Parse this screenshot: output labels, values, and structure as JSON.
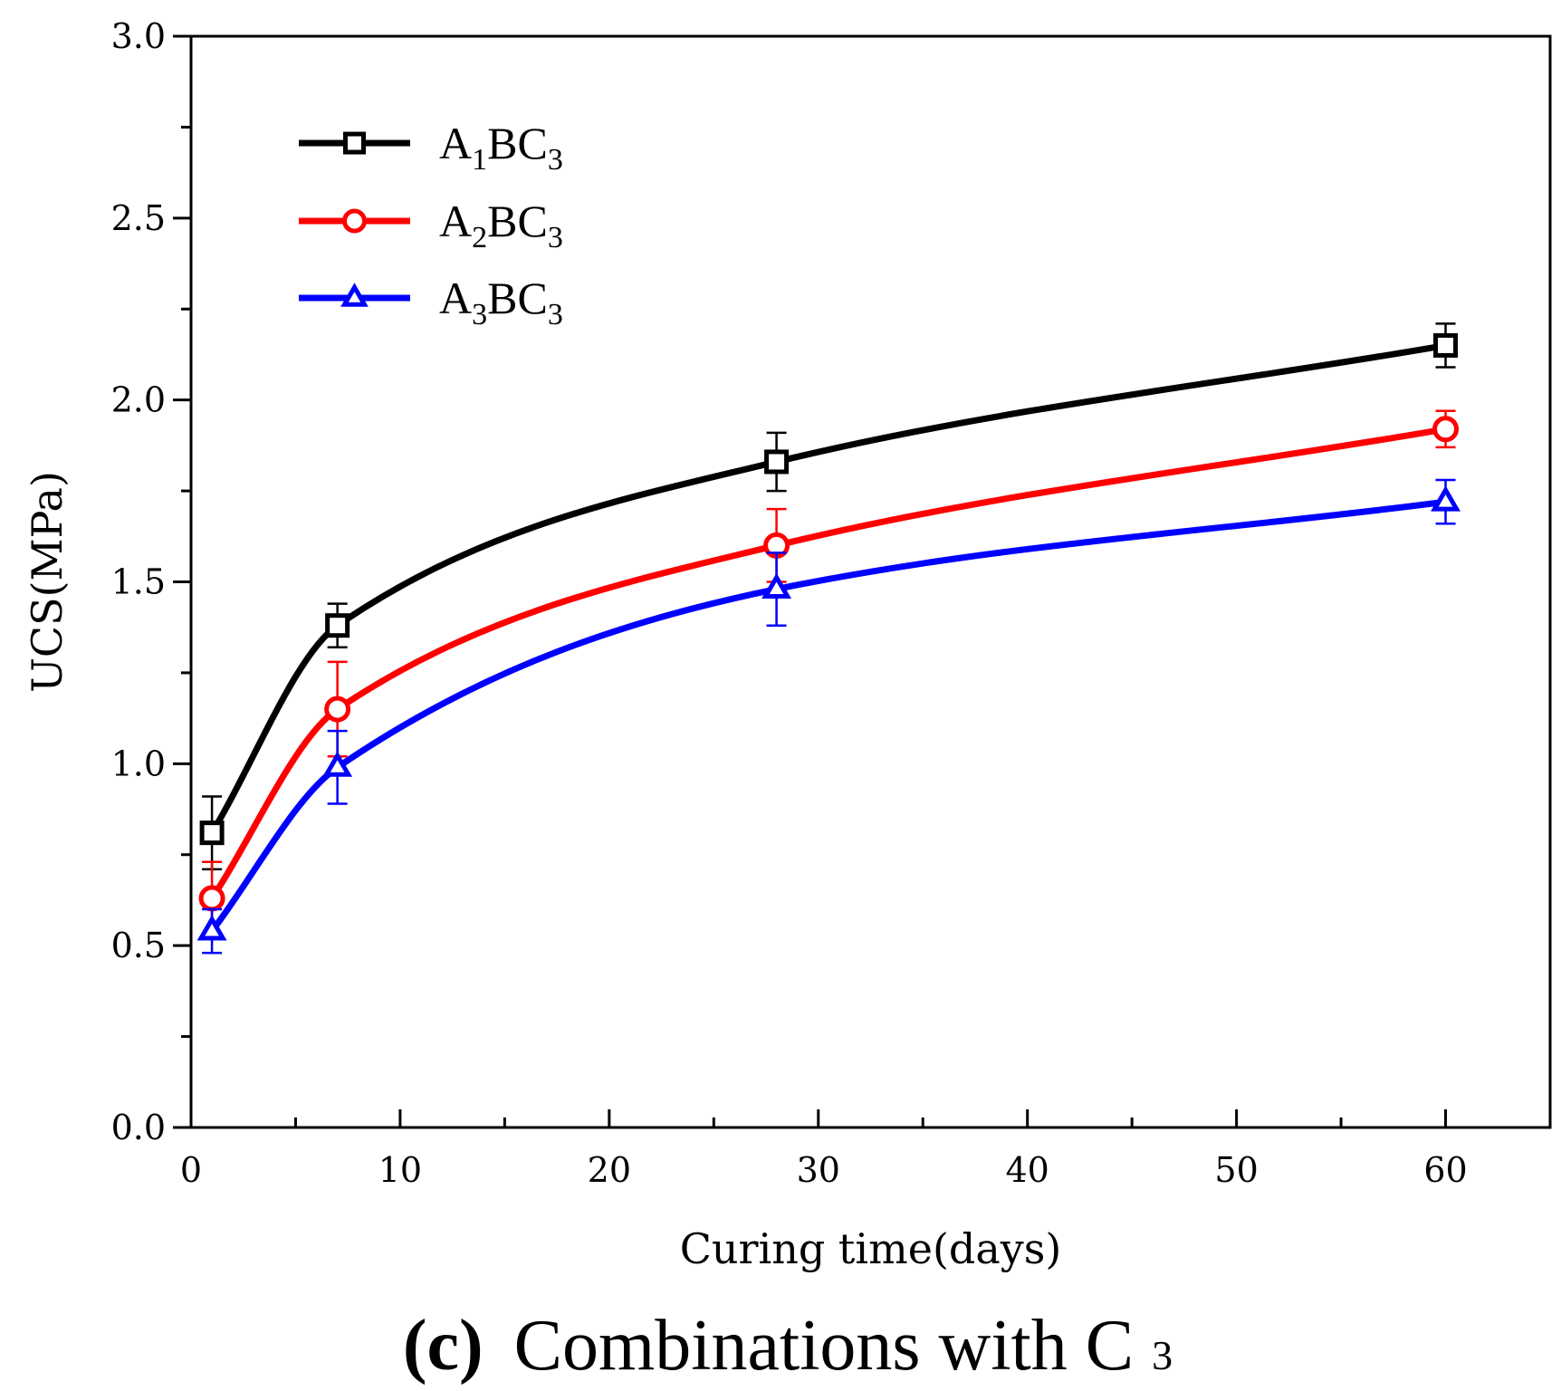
{
  "chart_data": {
    "type": "line",
    "title": "",
    "caption": {
      "label": "(c)",
      "text": "Combinations with C",
      "subscript": "3"
    },
    "xlabel": "Curing time(days)",
    "ylabel": "UCS(MPa)",
    "xlim": [
      0,
      65
    ],
    "ylim": [
      0,
      3.0
    ],
    "xticks": [
      0,
      10,
      20,
      30,
      40,
      50,
      60
    ],
    "xtick_labels": [
      "0",
      "10",
      "20",
      "30",
      "40",
      "50",
      "60"
    ],
    "yticks": [
      0,
      0.5,
      1.0,
      1.5,
      2.0,
      2.5,
      3.0
    ],
    "ytick_labels": [
      "0.0",
      "0.5",
      "1.0",
      "1.5",
      "2.0",
      "2.5",
      "3.0"
    ],
    "grid": false,
    "legend_position": "top-left",
    "series": [
      {
        "name": "A1BC3",
        "label_parts": [
          "A",
          "1",
          "BC",
          "3"
        ],
        "color": "#000000",
        "marker": "square",
        "x": [
          1,
          7,
          28,
          60
        ],
        "y": [
          0.81,
          1.38,
          1.83,
          2.15
        ],
        "err": [
          0.1,
          0.06,
          0.08,
          0.06
        ]
      },
      {
        "name": "A2BC3",
        "label_parts": [
          "A",
          "2",
          "BC",
          "3"
        ],
        "color": "#ff0000",
        "marker": "circle",
        "x": [
          1,
          7,
          28,
          60
        ],
        "y": [
          0.63,
          1.15,
          1.6,
          1.92
        ],
        "err": [
          0.1,
          0.13,
          0.1,
          0.05
        ]
      },
      {
        "name": "A3BC3",
        "label_parts": [
          "A",
          "3",
          "BC",
          "3"
        ],
        "color": "#0000ff",
        "marker": "triangle",
        "x": [
          1,
          7,
          28,
          60
        ],
        "y": [
          0.54,
          0.99,
          1.48,
          1.72
        ],
        "err": [
          0.06,
          0.1,
          0.1,
          0.06
        ]
      }
    ]
  }
}
